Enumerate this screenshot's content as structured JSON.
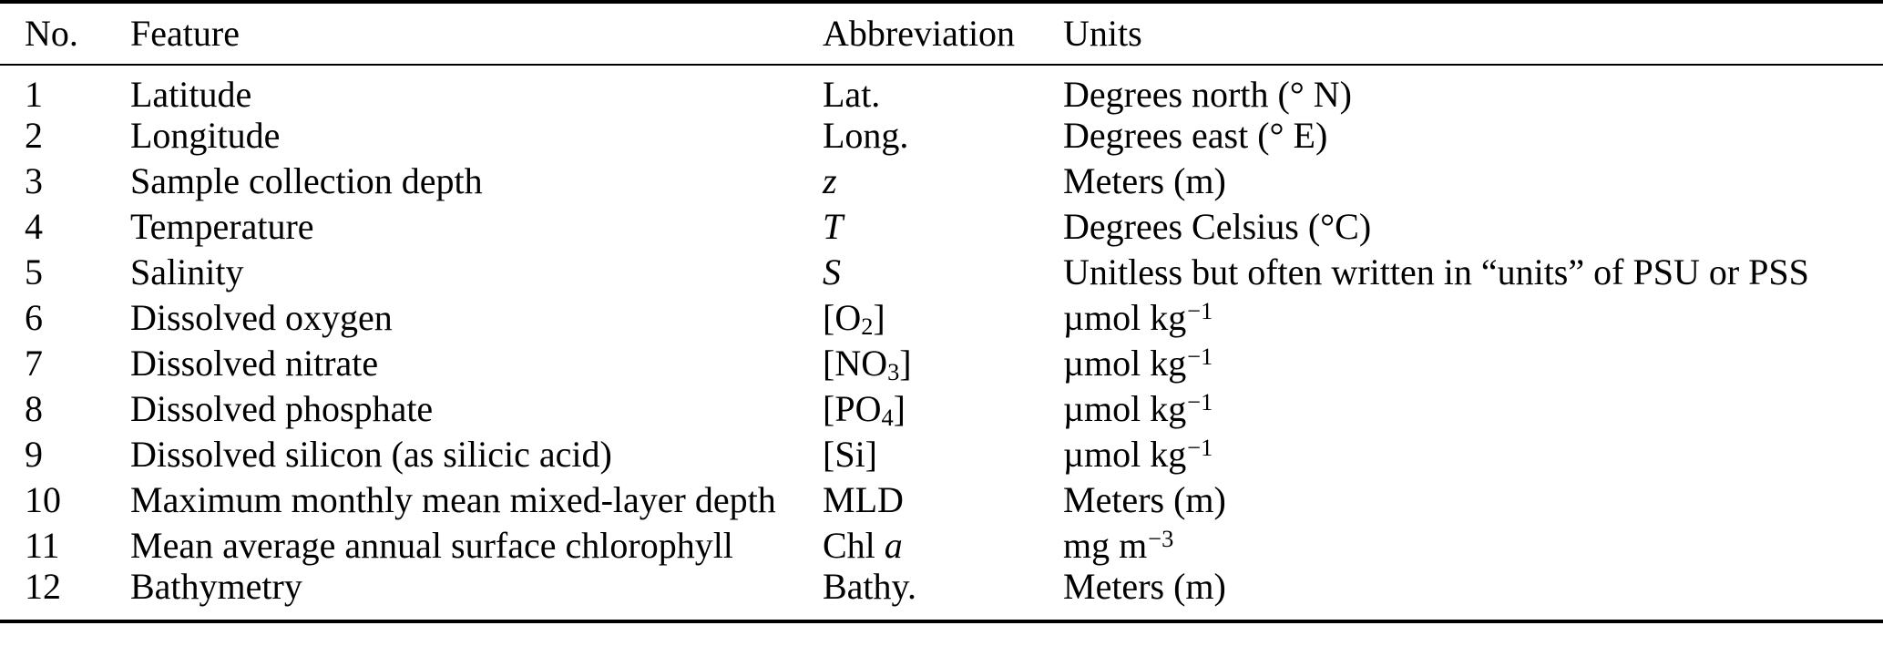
{
  "table": {
    "columns": [
      "No.",
      "Feature",
      "Abbreviation",
      "Units"
    ],
    "rows": [
      {
        "no": "1",
        "feature": "Latitude",
        "abbr": [
          {
            "t": "Lat.",
            "s": "p"
          }
        ],
        "units": [
          {
            "t": "Degrees north (° N)",
            "s": "p"
          }
        ]
      },
      {
        "no": "2",
        "feature": "Longitude",
        "abbr": [
          {
            "t": "Long.",
            "s": "p"
          }
        ],
        "units": [
          {
            "t": "Degrees east (° E)",
            "s": "p"
          }
        ]
      },
      {
        "no": "3",
        "feature": "Sample collection depth",
        "abbr": [
          {
            "t": "z",
            "s": "i"
          }
        ],
        "units": [
          {
            "t": "Meters (m)",
            "s": "p"
          }
        ]
      },
      {
        "no": "4",
        "feature": "Temperature",
        "abbr": [
          {
            "t": "T",
            "s": "i"
          }
        ],
        "units": [
          {
            "t": "Degrees Celsius (°C)",
            "s": "p"
          }
        ]
      },
      {
        "no": "5",
        "feature": "Salinity",
        "abbr": [
          {
            "t": "S",
            "s": "i"
          }
        ],
        "units": [
          {
            "t": "Unitless but often written in “units” of PSU or PSS",
            "s": "p"
          }
        ]
      },
      {
        "no": "6",
        "feature": "Dissolved oxygen",
        "abbr": [
          {
            "t": "[O",
            "s": "p"
          },
          {
            "t": "2",
            "s": "sub"
          },
          {
            "t": "]",
            "s": "p"
          }
        ],
        "units": [
          {
            "t": "µmol kg",
            "s": "p"
          },
          {
            "t": "−1",
            "s": "sup"
          }
        ]
      },
      {
        "no": "7",
        "feature": "Dissolved nitrate",
        "abbr": [
          {
            "t": "[NO",
            "s": "p"
          },
          {
            "t": "3",
            "s": "sub"
          },
          {
            "t": "]",
            "s": "p"
          }
        ],
        "units": [
          {
            "t": "µmol kg",
            "s": "p"
          },
          {
            "t": "−1",
            "s": "sup"
          }
        ]
      },
      {
        "no": "8",
        "feature": "Dissolved phosphate",
        "abbr": [
          {
            "t": "[PO",
            "s": "p"
          },
          {
            "t": "4",
            "s": "sub"
          },
          {
            "t": "]",
            "s": "p"
          }
        ],
        "units": [
          {
            "t": "µmol kg",
            "s": "p"
          },
          {
            "t": "−1",
            "s": "sup"
          }
        ]
      },
      {
        "no": "9",
        "feature": "Dissolved silicon (as silicic acid)",
        "abbr": [
          {
            "t": "[Si]",
            "s": "p"
          }
        ],
        "units": [
          {
            "t": "µmol kg",
            "s": "p"
          },
          {
            "t": "−1",
            "s": "sup"
          }
        ]
      },
      {
        "no": "10",
        "feature": "Maximum monthly mean mixed-layer depth",
        "abbr": [
          {
            "t": "MLD",
            "s": "p"
          }
        ],
        "units": [
          {
            "t": "Meters (m)",
            "s": "p"
          }
        ]
      },
      {
        "no": "11",
        "feature": "Mean average annual surface chlorophyll",
        "abbr": [
          {
            "t": "Chl ",
            "s": "p"
          },
          {
            "t": "a",
            "s": "i"
          }
        ],
        "units": [
          {
            "t": "mg m",
            "s": "p"
          },
          {
            "t": "−3",
            "s": "sup"
          }
        ]
      },
      {
        "no": "12",
        "feature": "Bathymetry",
        "abbr": [
          {
            "t": "Bathy.",
            "s": "p"
          }
        ],
        "units": [
          {
            "t": "Meters (m)",
            "s": "p"
          }
        ]
      }
    ]
  }
}
